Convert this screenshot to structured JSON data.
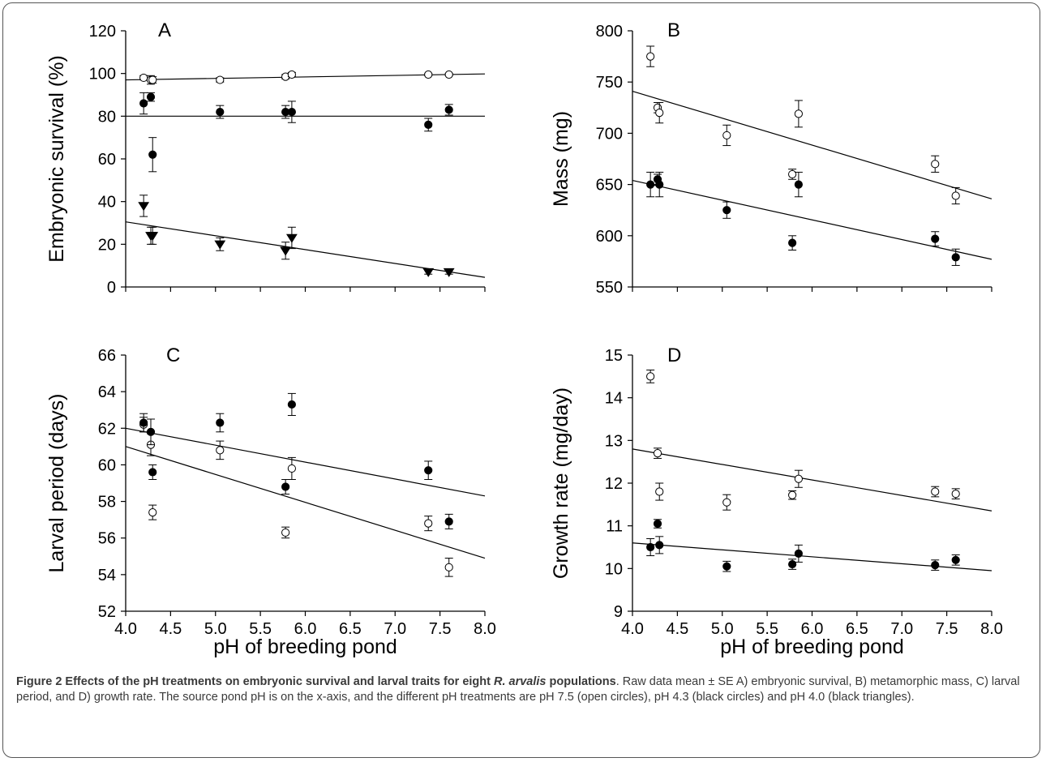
{
  "chart_data": [
    {
      "panel": "A",
      "type": "scatter",
      "ylabel": "Embryonic survival (%)",
      "xlabel": "",
      "xlim": [
        4.0,
        8.0
      ],
      "ylim": [
        0,
        120
      ],
      "xticks": [
        "4.0",
        "4.5",
        "5.0",
        "5.5",
        "6.0",
        "6.5",
        "7.0",
        "7.5",
        "8.0"
      ],
      "yticks": [
        "0",
        "20",
        "40",
        "60",
        "80",
        "100",
        "120"
      ],
      "series": [
        {
          "marker": "open-circle",
          "x": [
            4.2,
            4.28,
            4.3,
            5.05,
            5.78,
            5.85,
            7.37,
            7.6
          ],
          "y": [
            98,
            97,
            97,
            97,
            98.5,
            99.5,
            99.5,
            99.5
          ],
          "err": [
            1,
            2,
            1.5,
            1,
            1,
            1,
            0.5,
            0.5
          ],
          "fit": [
            97,
            99.8
          ]
        },
        {
          "marker": "filled-circle",
          "x": [
            4.2,
            4.28,
            4.3,
            5.05,
            5.78,
            5.85,
            7.37,
            7.6
          ],
          "y": [
            86,
            89,
            62,
            82,
            82,
            82,
            76,
            83
          ],
          "err": [
            5,
            2,
            8,
            3,
            3,
            5,
            3,
            2.5
          ],
          "fit": [
            80,
            80
          ]
        },
        {
          "marker": "filled-triangle",
          "x": [
            4.2,
            4.28,
            4.3,
            5.05,
            5.78,
            5.85,
            7.37,
            7.6
          ],
          "y": [
            38,
            24,
            24,
            20,
            17,
            23,
            7,
            7
          ],
          "err": [
            5,
            4,
            4,
            3,
            4,
            5,
            1,
            1
          ],
          "fit": [
            30.5,
            4.5
          ]
        }
      ]
    },
    {
      "panel": "B",
      "type": "scatter",
      "ylabel": "Mass (mg)",
      "xlabel": "",
      "xlim": [
        4.0,
        8.0
      ],
      "ylim": [
        550,
        800
      ],
      "xticks": [
        "4.0",
        "4.5",
        "5.0",
        "5.5",
        "6.0",
        "6.5",
        "7.0",
        "7.5",
        "8.0"
      ],
      "yticks": [
        "550",
        "600",
        "650",
        "700",
        "750",
        "800"
      ],
      "series": [
        {
          "marker": "open-circle",
          "x": [
            4.2,
            4.28,
            4.3,
            5.05,
            5.78,
            5.85,
            7.37,
            7.6
          ],
          "y": [
            775,
            725,
            720,
            698,
            660,
            719,
            670,
            639
          ],
          "err": [
            10,
            5,
            10,
            10,
            5,
            13,
            8,
            8
          ],
          "fit": [
            741,
            636
          ]
        },
        {
          "marker": "filled-circle",
          "x": [
            4.2,
            4.28,
            4.3,
            5.05,
            5.78,
            5.85,
            7.37,
            7.6
          ],
          "y": [
            650,
            655,
            650,
            625,
            593,
            650,
            597,
            579
          ],
          "err": [
            12,
            5,
            12,
            8,
            7,
            12,
            7,
            8
          ],
          "fit": [
            654,
            577
          ]
        }
      ]
    },
    {
      "panel": "C",
      "type": "scatter",
      "ylabel": "Larval period (days)",
      "xlabel": "pH of breeding pond",
      "xlim": [
        4.0,
        8.0
      ],
      "ylim": [
        52,
        66
      ],
      "xticks": [
        "4.0",
        "4.5",
        "5.0",
        "5.5",
        "6.0",
        "6.5",
        "7.0",
        "7.5",
        "8.0"
      ],
      "yticks": [
        "52",
        "54",
        "56",
        "58",
        "60",
        "62",
        "64",
        "66"
      ],
      "series": [
        {
          "marker": "open-circle",
          "x": [
            4.2,
            4.28,
            4.3,
            5.05,
            5.78,
            5.85,
            7.37,
            7.6
          ],
          "y": [
            62.2,
            61.1,
            57.4,
            60.8,
            56.3,
            59.8,
            56.8,
            54.4
          ],
          "err": [
            0.4,
            0.6,
            0.4,
            0.5,
            0.3,
            0.6,
            0.4,
            0.5
          ],
          "fit": [
            62,
            58.3
          ]
        },
        {
          "marker": "filled-circle",
          "x": [
            4.2,
            4.28,
            4.3,
            5.05,
            5.78,
            5.85,
            7.37,
            7.6
          ],
          "y": [
            62.3,
            61.8,
            59.6,
            62.3,
            58.8,
            63.3,
            59.7,
            56.9
          ],
          "err": [
            0.5,
            0.7,
            0.4,
            0.5,
            0.4,
            0.6,
            0.5,
            0.4
          ],
          "fit": [
            61,
            54.9
          ]
        }
      ]
    },
    {
      "panel": "D",
      "type": "scatter",
      "ylabel": "Growth rate (mg/day)",
      "xlabel": "pH of breeding pond",
      "xlim": [
        4.0,
        8.0
      ],
      "ylim": [
        9,
        15
      ],
      "xticks": [
        "4.0",
        "4.5",
        "5.0",
        "5.5",
        "6.0",
        "6.5",
        "7.0",
        "7.5",
        "8.0"
      ],
      "yticks": [
        "9",
        "10",
        "11",
        "12",
        "13",
        "14",
        "15"
      ],
      "series": [
        {
          "marker": "open-circle",
          "x": [
            4.2,
            4.28,
            4.3,
            5.05,
            5.78,
            5.85,
            7.37,
            7.6
          ],
          "y": [
            14.5,
            12.7,
            11.8,
            11.55,
            11.72,
            12.1,
            11.8,
            11.75
          ],
          "err": [
            0.15,
            0.12,
            0.2,
            0.18,
            0.1,
            0.2,
            0.12,
            0.12
          ],
          "fit": [
            12.8,
            11.35
          ]
        },
        {
          "marker": "filled-circle",
          "x": [
            4.2,
            4.28,
            4.3,
            5.05,
            5.78,
            5.85,
            7.37,
            7.6
          ],
          "y": [
            10.5,
            11.05,
            10.55,
            10.05,
            10.1,
            10.35,
            10.08,
            10.2
          ],
          "err": [
            0.2,
            0.1,
            0.2,
            0.12,
            0.12,
            0.2,
            0.12,
            0.12
          ],
          "fit": [
            10.6,
            9.95
          ]
        }
      ]
    }
  ],
  "caption": {
    "head_prefix": "Figure 2 Effects of the pH treatments on embryonic survival and larval traits for eight ",
    "head_species": "R. arvalis",
    "head_suffix": " populations",
    "body": ". Raw data mean ± SE A) embryonic survival, B) metamorphic mass, C) larval period, and D) growth rate. The source pond pH is on the x-axis, and the different pH treatments are pH 7.5 (open circles), pH 4.3 (black circles) and pH 4.0 (black triangles)."
  }
}
